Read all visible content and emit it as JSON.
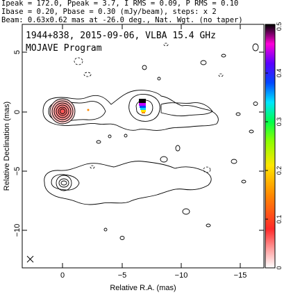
{
  "header": {
    "line1": "Ipeak = 172.0, Ppeak = 3.7, I RMS = 0.09, P RMS = 0.10",
    "line2": "Ibase = 0.20, Pbase = 0.30 (mJy/beam), steps: x 2",
    "line3": "Beam: 0.63x0.62 mas at -26.0 deg., Nat. Wgt. (no taper)"
  },
  "plot": {
    "title_line1": "1944+838, 2015-09-06, VLBA 15.4 GHz",
    "title_line2": "MOJAVE Program",
    "xlabel": "Relative R.A. (mas)",
    "ylabel": "Relative Declination (mas)",
    "x_ticks": [
      "0",
      "−5",
      "−10",
      "−15"
    ],
    "y_ticks": [
      "5",
      "0",
      "−5",
      "−10"
    ],
    "colorbar_ticks": [
      "0",
      "0.1",
      "0.2",
      "0.3",
      "0.4",
      "0.5"
    ],
    "colormap": [
      "#ff2a2a",
      "#ff8a00",
      "#ffe600",
      "#8cff00",
      "#00ff4a",
      "#00e6ff",
      "#0047ff",
      "#5a00ff",
      "#c000ff",
      "#ff00d8",
      "#000000"
    ]
  }
}
